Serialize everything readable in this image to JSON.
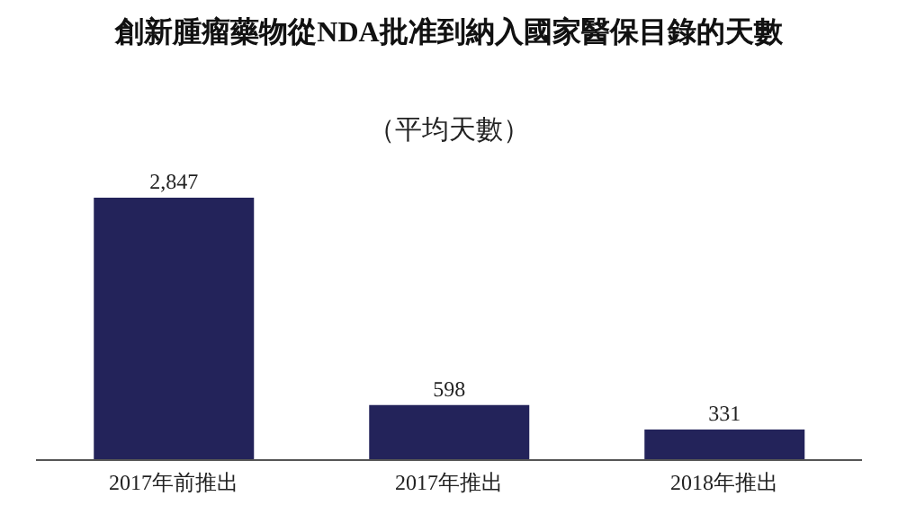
{
  "chart_data": {
    "type": "bar",
    "title": "創新腫瘤藥物從NDA批准到納入國家醫保目錄的天數",
    "subtitle": "（平均天數）",
    "categories": [
      "2017年前推出",
      "2017年推出",
      "2018年推出"
    ],
    "values": [
      2847,
      598,
      331
    ],
    "value_labels": [
      "2,847",
      "598",
      "331"
    ],
    "color": "#23235a",
    "grid": false,
    "legend": false
  }
}
